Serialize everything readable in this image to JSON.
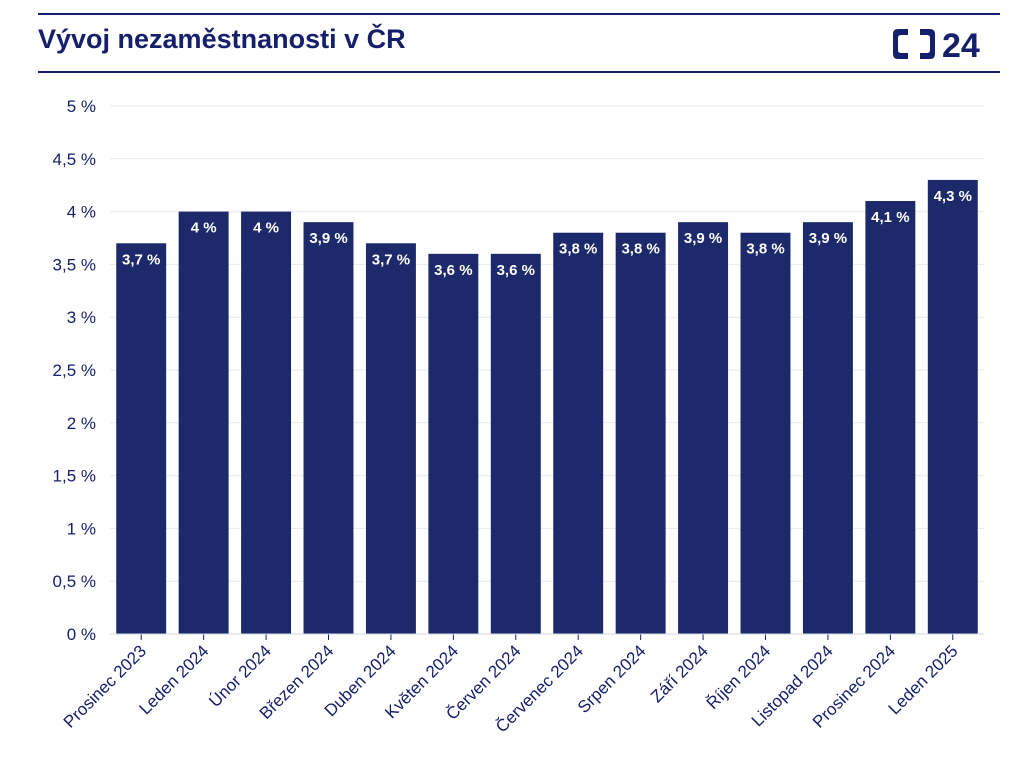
{
  "header": {
    "title": "Vývoj nezaměstnanosti v ČR",
    "logo_text": "24"
  },
  "colors": {
    "bar": "#1c296b",
    "text": "#14206b",
    "grid": "#e9e9ee",
    "rule": "#14206b"
  },
  "chart_data": {
    "type": "bar",
    "title": "Vývoj nezaměstnanosti v ČR",
    "xlabel": "",
    "ylabel": "",
    "categories": [
      "Prosinec 2023",
      "Leden 2024",
      "Únor 2024",
      "Březen 2024",
      "Duben 2024",
      "Květen 2024",
      "Červen 2024",
      "Červenec 2024",
      "Srpen 2024",
      "Září 2024",
      "Říjen 2024",
      "Listopad 2024",
      "Prosinec 2024",
      "Leden 2025"
    ],
    "values": [
      3.7,
      4.0,
      4.0,
      3.9,
      3.7,
      3.6,
      3.6,
      3.8,
      3.8,
      3.9,
      3.8,
      3.9,
      4.1,
      4.3
    ],
    "value_labels": [
      "3,7 %",
      "4 %",
      "4 %",
      "3,9 %",
      "3,7 %",
      "3,6 %",
      "3,6 %",
      "3,8 %",
      "3,8 %",
      "3,9 %",
      "3,8 %",
      "3,9 %",
      "4,1 %",
      "4,3 %"
    ],
    "ylim": [
      0,
      5
    ],
    "yticks": [
      0,
      0.5,
      1,
      1.5,
      2,
      2.5,
      3,
      3.5,
      4,
      4.5,
      5
    ],
    "ytick_labels": [
      "0 %",
      "0,5 %",
      "1 %",
      "1,5 %",
      "2 %",
      "2,5 %",
      "3 %",
      "3,5 %",
      "4 %",
      "4,5 %",
      "5 %"
    ],
    "grid": true,
    "legend": "none"
  }
}
